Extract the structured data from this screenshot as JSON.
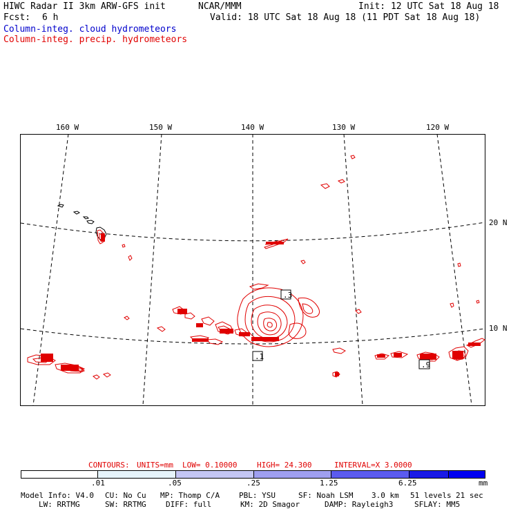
{
  "header": {
    "title": "HIWC Radar II 3km ARW-GFS init",
    "center": "NCAR/MMM",
    "init": "Init: 12 UTC Sat 18 Aug 18",
    "fcst_label": "Fcst:",
    "fcst_value": "6 h",
    "valid": "Valid: 18 UTC Sat 18 Aug 18 (11 PDT Sat 18 Aug 18)",
    "field1": "Column-integ. cloud hydrometeors",
    "field2": "Column-integ. precip. hydrometeors"
  },
  "colors": {
    "field1": "#0000cc",
    "field2": "#e00000",
    "coast": "#000000"
  },
  "map": {
    "lon_labels": [
      "160 W",
      "150 W",
      "140 W",
      "130 W",
      "120 W"
    ],
    "lat_labels": [
      "20 N",
      "10 N"
    ],
    "max_labels": [
      ".3",
      ".1",
      ".9"
    ]
  },
  "contour_info": {
    "contours": "CONTOURS:",
    "units": "UNITS=mm",
    "low": "LOW= 0.10000",
    "high": "HIGH= 24.300",
    "interval": "INTERVAL=X 3.0000"
  },
  "colorbar": {
    "ticks": [
      ".01",
      ".05",
      ".25",
      "1.25",
      "6.25"
    ],
    "unit": "mm",
    "fills": [
      "#ffffff",
      "#e6f4fb",
      "#c4c6f4",
      "#9f9ff0",
      "#5b5bef",
      "#1a1ae6",
      "#0000f0"
    ]
  },
  "footer": {
    "line1": [
      "Model Info: V4.0",
      "CU: No Cu",
      "MP: Thomp C/A",
      "PBL: YSU",
      "SF: Noah LSM",
      "3.0 km",
      "51 levels",
      "21 sec"
    ],
    "line2": [
      "LW: RRTMG",
      "SW: RRTMG",
      "DIFF: full",
      "KM: 2D Smagor",
      "DAMP: Rayleigh3",
      "SFLAY: MM5"
    ]
  }
}
